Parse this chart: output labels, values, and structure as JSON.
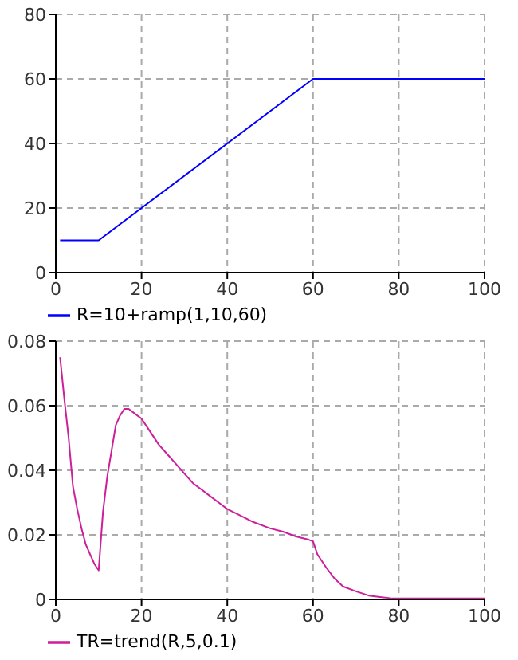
{
  "chart_data": [
    {
      "type": "line",
      "xlim": [
        0,
        100
      ],
      "ylim": [
        0,
        80
      ],
      "xticks": [
        0,
        20,
        40,
        60,
        80,
        100
      ],
      "yticks": [
        0,
        20,
        40,
        60,
        80
      ],
      "grid": true,
      "legend": "bottom",
      "marker": "none",
      "line_style": "solid",
      "series": [
        {
          "name": "R=10+ramp(1,10,60)",
          "color": "#0000ff",
          "x": [
            1,
            10,
            60,
            100
          ],
          "values": [
            10,
            10,
            60,
            60
          ]
        }
      ]
    },
    {
      "type": "line",
      "xlim": [
        0,
        100
      ],
      "ylim": [
        0,
        0.08
      ],
      "xticks": [
        0,
        20,
        40,
        60,
        80,
        100
      ],
      "yticks": [
        0,
        0.02,
        0.04,
        0.06,
        0.08
      ],
      "grid": true,
      "legend": "bottom",
      "marker": "none",
      "line_style": "solid",
      "series": [
        {
          "name": "TR=trend(R,5,0.1)",
          "color": "#cc1f99",
          "x": [
            1,
            2,
            3,
            4,
            5,
            6,
            7,
            8,
            9,
            10,
            11,
            12,
            13,
            14,
            15,
            16,
            17,
            18,
            20,
            22,
            24,
            26,
            28,
            30,
            32,
            35,
            38,
            40,
            43,
            46,
            50,
            53,
            56,
            59,
            60,
            61,
            63,
            65,
            67,
            70,
            73,
            76,
            78,
            80,
            100
          ],
          "values": [
            0.075,
            0.062,
            0.05,
            0.035,
            0.028,
            0.022,
            0.017,
            0.014,
            0.011,
            0.009,
            0.027,
            0.038,
            0.046,
            0.054,
            0.057,
            0.059,
            0.059,
            0.058,
            0.056,
            0.052,
            0.048,
            0.045,
            0.042,
            0.039,
            0.036,
            0.033,
            0.03,
            0.028,
            0.026,
            0.024,
            0.022,
            0.021,
            0.0195,
            0.0185,
            0.018,
            0.014,
            0.01,
            0.0065,
            0.004,
            0.0025,
            0.0012,
            0.0007,
            0.0004,
            0.0003,
            0.0003
          ]
        }
      ]
    }
  ]
}
